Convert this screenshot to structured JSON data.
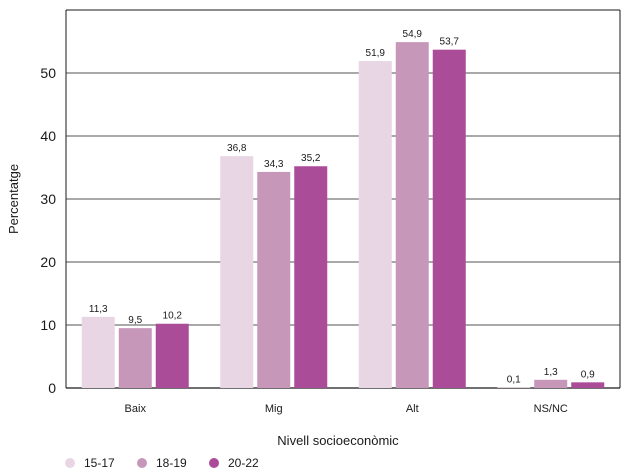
{
  "chart_data": {
    "type": "bar",
    "categories": [
      "Baix",
      "Mig",
      "Alt",
      "NS/NC"
    ],
    "series": [
      {
        "name": "15-17",
        "color": "#e9d6e4",
        "values": [
          11.3,
          36.8,
          51.9,
          0.1
        ],
        "labels": [
          "11,3",
          "36,8",
          "51,9",
          "0,1"
        ]
      },
      {
        "name": "18-19",
        "color": "#c797ba",
        "values": [
          9.5,
          34.3,
          54.9,
          1.3
        ],
        "labels": [
          "9,5",
          "34,3",
          "54,9",
          "1,3"
        ]
      },
      {
        "name": "20-22",
        "color": "#ab4c99",
        "values": [
          10.2,
          35.2,
          53.7,
          0.9
        ],
        "labels": [
          "10,2",
          "35,2",
          "53,7",
          "0,9"
        ]
      }
    ],
    "xlabel": "Nivell socioeconòmic",
    "ylabel": "Percentatge",
    "ylim": [
      0,
      60
    ],
    "yticks": [
      0,
      10,
      20,
      30,
      40,
      50
    ],
    "grid": true,
    "legend_position": "bottom-left"
  }
}
